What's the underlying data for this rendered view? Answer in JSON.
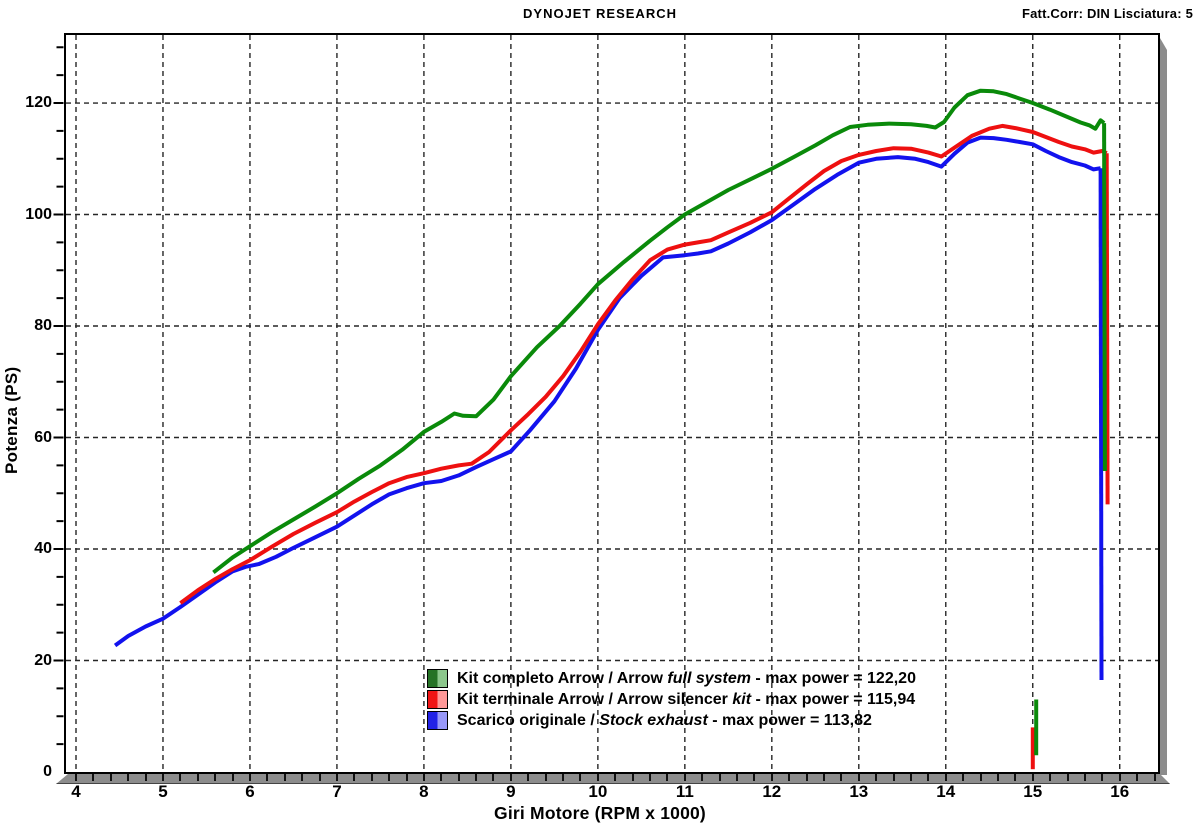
{
  "header": {
    "title": "DYNOJET RESEARCH",
    "right": "Fatt.Corr: DIN  Lisciatura: 5"
  },
  "axes": {
    "x": {
      "title": "Giri Motore (RPM x 1000)",
      "ticks": [
        4,
        5,
        6,
        7,
        8,
        9,
        10,
        11,
        12,
        13,
        14,
        15,
        16
      ],
      "minor_step": 0.2
    },
    "y": {
      "title": "Potenza (PS)",
      "ticks": [
        0,
        20,
        40,
        60,
        80,
        100,
        120
      ],
      "minor_step": 5
    }
  },
  "legend": [
    {
      "prefix": "Kit completo Arrow / Arrow ",
      "italic": "full system",
      "suffix": " - max power = 122,20",
      "swatch_dark": "#267326",
      "swatch_light": "#8cc78c"
    },
    {
      "prefix": "Kit terminale Arrow / Arrow silencer ",
      "italic": "kit",
      "suffix": " - max power = 115,94",
      "swatch_dark": "#f01414",
      "swatch_light": "#ff9898"
    },
    {
      "prefix": "Scarico originale / ",
      "italic": "Stock exhaust",
      "suffix": " - max power = 113,82",
      "swatch_dark": "#2222e6",
      "swatch_light": "#9898f8"
    }
  ],
  "chart_data": {
    "type": "line",
    "title": "DYNOJET RESEARCH",
    "xlabel": "Giri Motore (RPM x 1000)",
    "ylabel": "Potenza (PS)",
    "xlim": [
      3.885,
      16.44
    ],
    "ylim": [
      0,
      132.2
    ],
    "grid": "dashed",
    "grid_color": "#262626",
    "legend_position": "bottom-center-inside",
    "series": [
      {
        "name": "Scarico originale / Stock exhaust",
        "color": "#1212ee",
        "max_power_ps": 113.82,
        "segments": [
          [
            [
              4.45,
              22.7
            ],
            [
              4.6,
              24.4
            ],
            [
              4.8,
              26.1
            ],
            [
              5.0,
              27.5
            ],
            [
              5.2,
              29.6
            ],
            [
              5.4,
              31.8
            ],
            [
              5.6,
              34.0
            ],
            [
              5.8,
              36.0
            ],
            [
              5.95,
              36.8
            ],
            [
              6.1,
              37.3
            ],
            [
              6.3,
              38.6
            ],
            [
              6.5,
              40.2
            ],
            [
              6.75,
              42.1
            ],
            [
              7.0,
              44.0
            ],
            [
              7.2,
              46.0
            ],
            [
              7.4,
              48.0
            ],
            [
              7.6,
              49.8
            ],
            [
              7.8,
              50.9
            ],
            [
              8.0,
              51.8
            ],
            [
              8.2,
              52.2
            ],
            [
              8.4,
              53.2
            ],
            [
              8.6,
              54.7
            ],
            [
              8.8,
              56.1
            ],
            [
              9.0,
              57.5
            ],
            [
              9.22,
              61.3
            ],
            [
              9.5,
              66.5
            ],
            [
              9.75,
              72.4
            ],
            [
              10.0,
              79.3
            ],
            [
              10.25,
              85.0
            ],
            [
              10.5,
              89.0
            ],
            [
              10.75,
              92.3
            ],
            [
              11.0,
              92.7
            ],
            [
              11.15,
              93.0
            ],
            [
              11.3,
              93.4
            ],
            [
              11.5,
              94.8
            ],
            [
              11.75,
              96.8
            ],
            [
              12.0,
              99.0
            ],
            [
              12.25,
              101.8
            ],
            [
              12.5,
              104.6
            ],
            [
              12.75,
              107.1
            ],
            [
              13.0,
              109.3
            ],
            [
              13.2,
              110.0
            ],
            [
              13.45,
              110.3
            ],
            [
              13.65,
              110.0
            ],
            [
              13.8,
              109.4
            ],
            [
              13.95,
              108.6
            ],
            [
              14.1,
              110.9
            ],
            [
              14.25,
              112.9
            ],
            [
              14.4,
              113.8
            ],
            [
              14.55,
              113.7
            ],
            [
              14.7,
              113.4
            ],
            [
              14.85,
              113.0
            ],
            [
              15.0,
              112.6
            ],
            [
              15.15,
              111.4
            ],
            [
              15.3,
              110.3
            ],
            [
              15.45,
              109.4
            ],
            [
              15.6,
              108.8
            ],
            [
              15.7,
              108.1
            ],
            [
              15.78,
              108.3
            ]
          ],
          [
            [
              15.78,
              108.3
            ],
            [
              15.79,
              16.5
            ]
          ]
        ]
      },
      {
        "name": "Kit terminale Arrow / Arrow silencer kit",
        "color": "#ee1010",
        "max_power_ps": 115.94,
        "segments": [
          [
            [
              5.2,
              30.3
            ],
            [
              5.4,
              32.6
            ],
            [
              5.6,
              34.6
            ],
            [
              5.8,
              36.4
            ],
            [
              6.0,
              38.0
            ],
            [
              6.25,
              40.4
            ],
            [
              6.5,
              42.7
            ],
            [
              6.75,
              44.7
            ],
            [
              7.0,
              46.6
            ],
            [
              7.2,
              48.5
            ],
            [
              7.4,
              50.2
            ],
            [
              7.6,
              51.8
            ],
            [
              7.8,
              52.9
            ],
            [
              8.0,
              53.6
            ],
            [
              8.2,
              54.4
            ],
            [
              8.4,
              55.0
            ],
            [
              8.55,
              55.3
            ],
            [
              8.75,
              57.4
            ],
            [
              9.0,
              61.3
            ],
            [
              9.2,
              64.2
            ],
            [
              9.4,
              67.3
            ],
            [
              9.6,
              71.0
            ],
            [
              9.8,
              75.4
            ],
            [
              10.0,
              80.3
            ],
            [
              10.2,
              84.6
            ],
            [
              10.4,
              88.4
            ],
            [
              10.6,
              91.8
            ],
            [
              10.8,
              93.7
            ],
            [
              11.0,
              94.6
            ],
            [
              11.15,
              95.0
            ],
            [
              11.3,
              95.4
            ],
            [
              11.5,
              96.8
            ],
            [
              11.75,
              98.5
            ],
            [
              12.0,
              100.4
            ],
            [
              12.2,
              102.9
            ],
            [
              12.4,
              105.4
            ],
            [
              12.6,
              107.8
            ],
            [
              12.8,
              109.6
            ],
            [
              13.0,
              110.7
            ],
            [
              13.2,
              111.4
            ],
            [
              13.4,
              111.9
            ],
            [
              13.6,
              111.8
            ],
            [
              13.8,
              111.1
            ],
            [
              13.95,
              110.4
            ],
            [
              14.1,
              112.0
            ],
            [
              14.3,
              114.1
            ],
            [
              14.5,
              115.4
            ],
            [
              14.65,
              115.9
            ],
            [
              14.8,
              115.5
            ],
            [
              15.0,
              114.8
            ],
            [
              15.15,
              113.9
            ],
            [
              15.3,
              113.0
            ],
            [
              15.45,
              112.2
            ],
            [
              15.6,
              111.7
            ],
            [
              15.7,
              111.1
            ],
            [
              15.8,
              111.4
            ],
            [
              15.85,
              111.0
            ]
          ],
          [
            [
              15.85,
              111.0
            ],
            [
              15.86,
              48.0
            ]
          ],
          [
            [
              15.0,
              0.5
            ],
            [
              15.0,
              8.0
            ]
          ]
        ]
      },
      {
        "name": "Kit completo Arrow / Arrow full system",
        "color": "#0a8a0a",
        "max_power_ps": 122.2,
        "segments": [
          [
            [
              5.58,
              35.8
            ],
            [
              5.8,
              38.5
            ],
            [
              6.0,
              40.5
            ],
            [
              6.25,
              43.0
            ],
            [
              6.5,
              45.3
            ],
            [
              6.75,
              47.6
            ],
            [
              7.0,
              50.0
            ],
            [
              7.25,
              52.6
            ],
            [
              7.5,
              55.0
            ],
            [
              7.75,
              57.8
            ],
            [
              8.0,
              61.0
            ],
            [
              8.2,
              62.8
            ],
            [
              8.35,
              64.3
            ],
            [
              8.45,
              63.9
            ],
            [
              8.6,
              63.8
            ],
            [
              8.8,
              66.8
            ],
            [
              9.0,
              71.0
            ],
            [
              9.3,
              76.2
            ],
            [
              9.56,
              80.0
            ],
            [
              9.8,
              84.0
            ],
            [
              10.0,
              87.5
            ],
            [
              10.3,
              91.5
            ],
            [
              10.6,
              95.3
            ],
            [
              10.8,
              97.7
            ],
            [
              11.0,
              100.0
            ],
            [
              11.25,
              102.2
            ],
            [
              11.5,
              104.4
            ],
            [
              11.75,
              106.3
            ],
            [
              12.0,
              108.2
            ],
            [
              12.25,
              110.3
            ],
            [
              12.5,
              112.4
            ],
            [
              12.7,
              114.2
            ],
            [
              12.9,
              115.7
            ],
            [
              13.1,
              116.1
            ],
            [
              13.35,
              116.3
            ],
            [
              13.6,
              116.2
            ],
            [
              13.78,
              115.9
            ],
            [
              13.88,
              115.6
            ],
            [
              13.98,
              116.6
            ],
            [
              14.1,
              119.2
            ],
            [
              14.25,
              121.4
            ],
            [
              14.4,
              122.2
            ],
            [
              14.55,
              122.1
            ],
            [
              14.7,
              121.6
            ],
            [
              14.85,
              120.8
            ],
            [
              15.0,
              120.0
            ],
            [
              15.2,
              118.8
            ],
            [
              15.4,
              117.5
            ],
            [
              15.55,
              116.5
            ],
            [
              15.65,
              116.0
            ],
            [
              15.72,
              115.4
            ],
            [
              15.78,
              116.9
            ],
            [
              15.82,
              116.4
            ]
          ],
          [
            [
              15.82,
              116.4
            ],
            [
              15.83,
              54.0
            ]
          ],
          [
            [
              15.04,
              3.0
            ],
            [
              15.04,
              13.0
            ]
          ]
        ]
      }
    ]
  }
}
